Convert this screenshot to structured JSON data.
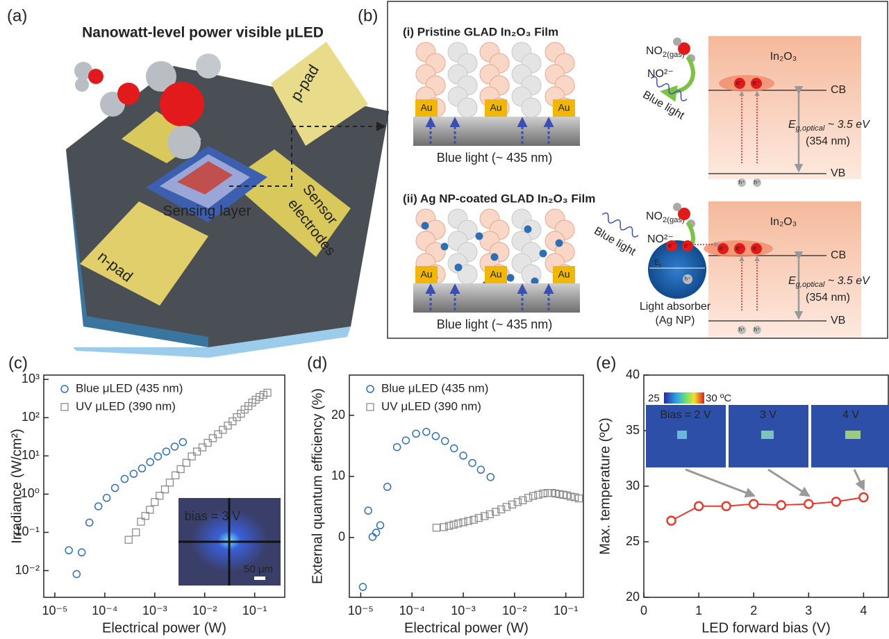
{
  "panel_a": {
    "label": "(a)",
    "title": "Nanowatt-level power visible μLED",
    "p_pad": "p-pad",
    "sensing": "Sensing layer",
    "sensor": [
      "Sensor",
      "electrodes"
    ],
    "n_pad": "n-pad"
  },
  "panel_b": {
    "label": "(b)",
    "films": [
      {
        "title": "(i) Pristine GLAD In₂O₃ Film",
        "electrodes": [
          "Au",
          "Au",
          "Au"
        ],
        "light": "Blue light (~ 435 nm)"
      },
      {
        "title": "(ii) Ag NP-coated GLAD In₂O₃ Film",
        "electrodes": [
          "Au",
          "Au",
          "Au"
        ],
        "light": "Blue light (~ 435 nm)"
      }
    ],
    "bands": [
      {
        "gas": {
          "base": "NO",
          "sub": "2(gas)"
        },
        "ion": "NO²⁻",
        "material": "In₂O₃",
        "cb": "CB",
        "vb": "VB",
        "light": "Blue light",
        "electrons": [
          "e⁻",
          "e⁻"
        ],
        "holes": [
          "h⁺",
          "h⁺"
        ],
        "gap": {
          "base": "E",
          "sub": "g,optical",
          "rest": " ~ 3.5 eV"
        },
        "wavelength": "(354 nm)"
      },
      {
        "gas": {
          "base": "NO",
          "sub": "2(gas)"
        },
        "ion": "NO²⁻",
        "material": "In₂O₃",
        "cb": "CB",
        "vb": "VB",
        "light": "Blue light",
        "electrons": [
          "e⁻",
          "e⁻",
          "e⁻"
        ],
        "holes": [
          "h⁺",
          "h⁺"
        ],
        "gap": {
          "base": "E",
          "sub": "g,optical",
          "rest": " ~ 3.5 eV"
        },
        "wavelength": "(354 nm)",
        "absorber": {
          "lines": [
            "Light absorber",
            "(Ag NP)"
          ],
          "electrons": [
            "e⁻",
            "e⁻"
          ],
          "hole": "h⁺",
          "fermi": {
            "base": "E",
            "sub": "f"
          }
        }
      }
    ]
  },
  "chart_data": [
    {
      "type": "scatter",
      "panel_label": "(c)",
      "xlabel": "Electrical power (W)",
      "ylabel": "Irradiance (W/cm²)",
      "xscale": "log",
      "yscale": "log",
      "legend": "upper left",
      "xlim": [
        6e-06,
        0.4
      ],
      "ylim": [
        0.002,
        1300
      ],
      "xticks": [
        {
          "value": 1e-05,
          "label": "10⁻⁵"
        },
        {
          "value": 0.0001,
          "label": "10⁻⁴"
        },
        {
          "value": 0.001,
          "label": "10⁻³"
        },
        {
          "value": 0.01,
          "label": "10⁻²"
        },
        {
          "value": 0.1,
          "label": "10⁻¹"
        }
      ],
      "yticks": [
        {
          "value": 0.01,
          "label": "10⁻²"
        },
        {
          "value": 0.1,
          "label": "10⁻¹"
        },
        {
          "value": 1,
          "label": "10⁰"
        },
        {
          "value": 10,
          "label": "10¹"
        },
        {
          "value": 100,
          "label": "10²"
        },
        {
          "value": 1000,
          "label": "10³"
        }
      ],
      "series": [
        {
          "name": "Blue μLED (435 nm)",
          "color": "#2f6fba",
          "marker": "circle",
          "x": [
            1.91e-05,
            2.73e-05,
            3.45e-05,
            4.92e-05,
            7.44e-05,
            0.000109,
            0.00016,
            0.000249,
            0.000378,
            0.000555,
            0.00081,
            0.00116,
            0.0017,
            0.0025,
            0.00366
          ],
          "values": [
            0.034,
            0.0081,
            0.03,
            0.18,
            0.48,
            0.8,
            1.45,
            2.5,
            3.4,
            4.7,
            6.9,
            9.7,
            13,
            17.5,
            23
          ]
        },
        {
          "name": "UV μLED (390 nm)",
          "color": "#8c8c8c",
          "marker": "square",
          "x": [
            0.0003,
            0.00042,
            0.00053,
            0.00065,
            0.0008,
            0.001,
            0.00125,
            0.0016,
            0.002,
            0.0026,
            0.0033,
            0.0043,
            0.0055,
            0.007,
            0.009,
            0.0115,
            0.0145,
            0.0185,
            0.023,
            0.029,
            0.036,
            0.044,
            0.053,
            0.063,
            0.075,
            0.089,
            0.105,
            0.125,
            0.15,
            0.18
          ],
          "values": [
            0.064,
            0.1,
            0.19,
            0.27,
            0.39,
            0.62,
            0.91,
            1.33,
            2.0,
            3.1,
            4.5,
            6.6,
            9.7,
            13,
            16.7,
            22,
            29,
            37,
            48,
            62,
            80,
            103,
            127,
            163,
            201,
            249,
            294,
            348,
            395,
            449
          ]
        }
      ],
      "inset": {
        "texts": [
          "bias = 3 V",
          "50 μm"
        ]
      }
    },
    {
      "type": "scatter",
      "panel_label": "(d)",
      "xlabel": "Electrical power (W)",
      "ylabel": "External quantum efficiency (%)",
      "xscale": "log",
      "yscale": "linear",
      "legend": "upper left",
      "xlim": [
        6e-06,
        0.22
      ],
      "ylim": [
        -9.8,
        26.6
      ],
      "xticks": [
        {
          "value": 1e-05,
          "label": "10⁻⁵"
        },
        {
          "value": 0.0001,
          "label": "10⁻⁴"
        },
        {
          "value": 0.001,
          "label": "10⁻³"
        },
        {
          "value": 0.01,
          "label": "10⁻²"
        },
        {
          "value": 0.1,
          "label": "10⁻¹"
        }
      ],
      "yticks": [
        0,
        10,
        20
      ],
      "series": [
        {
          "name": "Blue μLED (435 nm)",
          "color": "#2f6fba",
          "marker": "circle",
          "x": [
            1.1e-05,
            1.4e-05,
            1.7e-05,
            2e-05,
            2.4e-05,
            3.3e-05,
            5.1e-05,
            7.6e-05,
            0.00012,
            0.00019,
            0.00029,
            0.00044,
            0.00066,
            0.001,
            0.0015,
            0.0022,
            0.0034
          ],
          "values": [
            -8.1,
            4.4,
            0.1,
            0.8,
            2.0,
            8.3,
            14.8,
            15.9,
            17.0,
            17.3,
            16.6,
            15.8,
            14.6,
            13.4,
            12.2,
            11.1,
            9.9
          ]
        },
        {
          "name": "UV μLED (390 nm)",
          "color": "#8c8c8c",
          "marker": "square",
          "x": [
            0.0003,
            0.00042,
            0.00053,
            0.00065,
            0.0008,
            0.001,
            0.00125,
            0.0016,
            0.002,
            0.0026,
            0.0033,
            0.0043,
            0.0055,
            0.007,
            0.009,
            0.0115,
            0.0145,
            0.0185,
            0.023,
            0.029,
            0.036,
            0.044,
            0.053,
            0.063,
            0.075,
            0.089,
            0.105,
            0.125,
            0.15,
            0.18
          ],
          "values": [
            1.6,
            1.7,
            1.9,
            2.1,
            2.3,
            2.5,
            2.7,
            2.9,
            3.2,
            3.5,
            3.8,
            4.2,
            4.6,
            5.0,
            5.4,
            5.8,
            6.1,
            6.5,
            6.8,
            7.0,
            7.2,
            7.3,
            7.3,
            7.2,
            7.1,
            7.0,
            6.9,
            6.7,
            6.6,
            6.4
          ]
        }
      ]
    },
    {
      "type": "line",
      "panel_label": "(e)",
      "xlabel": "LED forward bias (V)",
      "ylabel": "Max. temperature (ºC)",
      "xscale": "linear",
      "yscale": "linear",
      "xlim": [
        0,
        4.45
      ],
      "ylim": [
        20,
        40
      ],
      "xticks": [
        0,
        1,
        2,
        3,
        4
      ],
      "yticks": [
        20,
        25,
        30,
        35,
        40
      ],
      "series": [
        {
          "color": "#e8392f",
          "marker": "circle",
          "x": [
            0.5,
            1,
            1.5,
            2,
            2.5,
            3,
            3.5,
            4
          ],
          "values": [
            26.9,
            28.2,
            28.2,
            28.4,
            28.3,
            28.4,
            28.6,
            29.0
          ]
        }
      ],
      "inset": {
        "colorbar": [
          "25",
          "30 ºC"
        ],
        "images": [
          "Bias = 2 V",
          "3 V",
          "4 V"
        ],
        "arrow_x": [
          2,
          3,
          4
        ]
      }
    }
  ]
}
